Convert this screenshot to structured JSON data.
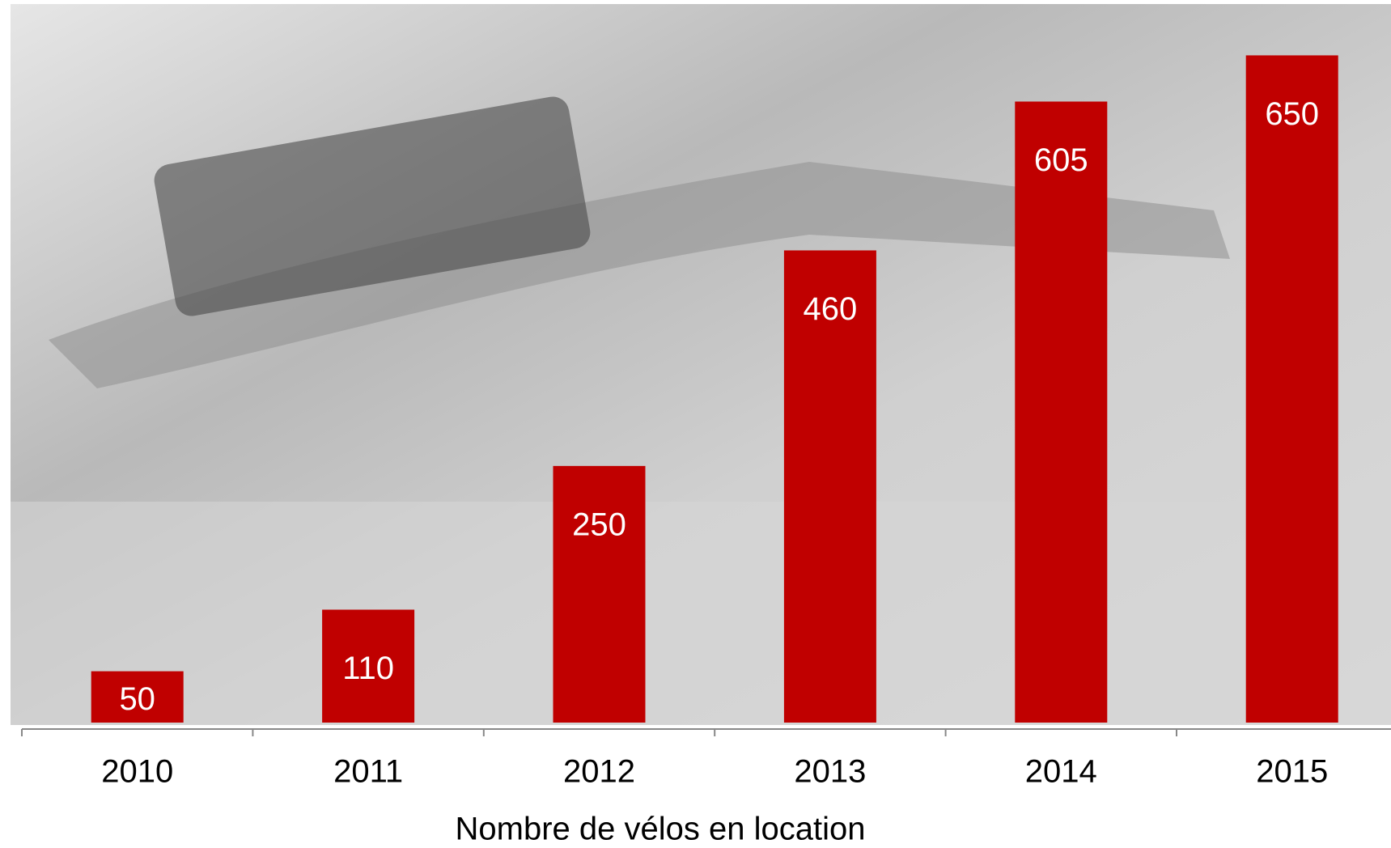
{
  "chart_data": {
    "type": "bar",
    "title": "Nombre  de vélos en location",
    "categories": [
      "2010",
      "2011",
      "2012",
      "2013",
      "2014",
      "2015"
    ],
    "values": [
      50,
      110,
      250,
      460,
      605,
      650
    ],
    "color": "#c00000",
    "ylim": [
      0,
      700
    ]
  }
}
